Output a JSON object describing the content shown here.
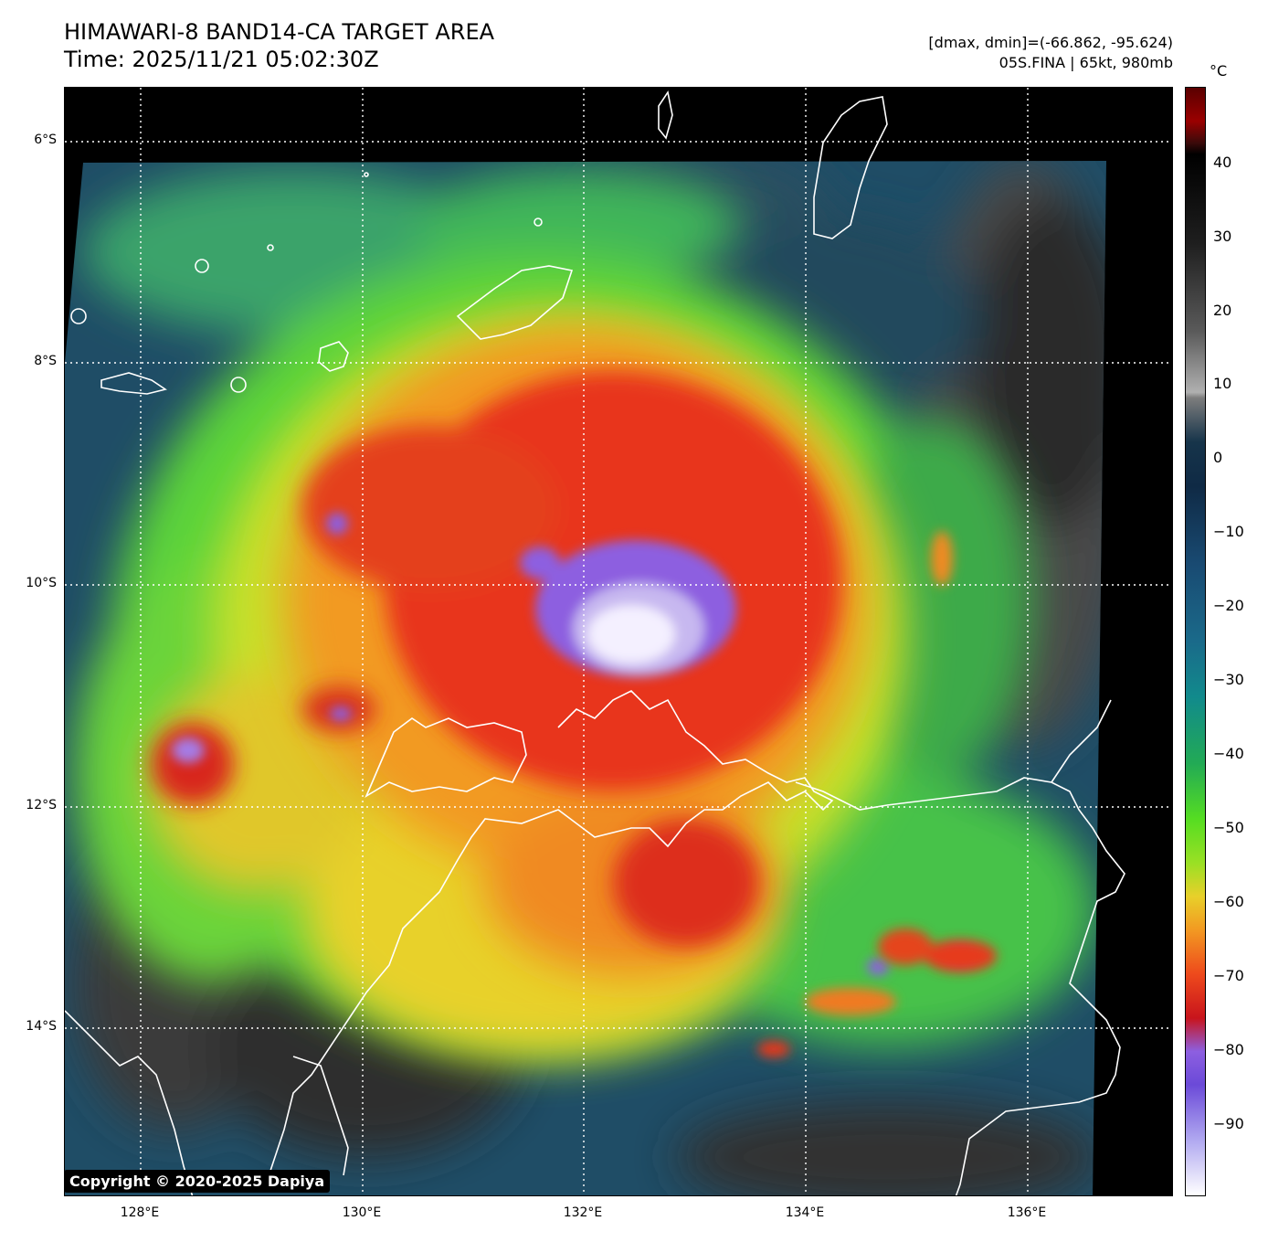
{
  "title": {
    "line1": "HIMAWARI-8 BAND14-CA TARGET AREA",
    "line2": "Time: 2025/11/21 05:02:30Z"
  },
  "info": {
    "dmax_dmin": "[dmax, dmin]=(-66.862, -95.624)",
    "storm": "05S.FINA | 65kt, 980mb"
  },
  "map": {
    "lat_labels": [
      "6°S",
      "8°S",
      "10°S",
      "12°S",
      "14°S"
    ],
    "lon_labels": [
      "128°E",
      "130°E",
      "132°E",
      "134°E",
      "136°E"
    ]
  },
  "colorbar": {
    "unit": "°C",
    "labels": [
      "40",
      "30",
      "20",
      "10",
      "0",
      "−10",
      "−20",
      "−30",
      "−40",
      "−50",
      "−60",
      "−70",
      "−80",
      "−90"
    ],
    "range_max": 49,
    "range_min": -100
  },
  "copyright": "Copyright © 2020-2025 Dapiya"
}
